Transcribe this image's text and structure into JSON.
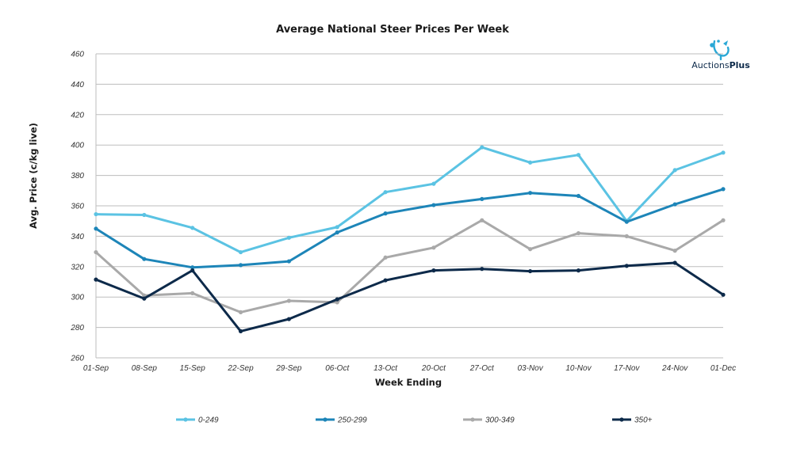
{
  "brand": {
    "name_part1": "Auctions",
    "name_part2": "Plus",
    "accent": "#2aa8d6",
    "dark": "#0d2a4a"
  },
  "chart_data": {
    "type": "line",
    "title": "Average National Steer Prices Per Week",
    "xlabel": "Week Ending",
    "ylabel": "Avg. Price (c/kg live)",
    "ylim": [
      260,
      460
    ],
    "yticks": [
      260,
      280,
      300,
      320,
      340,
      360,
      380,
      400,
      420,
      440,
      460
    ],
    "grid": true,
    "legend": "bottom",
    "categories": [
      "01-Sep",
      "08-Sep",
      "15-Sep",
      "22-Sep",
      "29-Sep",
      "06-Oct",
      "13-Oct",
      "20-Oct",
      "27-Oct",
      "03-Nov",
      "10-Nov",
      "17-Nov",
      "24-Nov",
      "01-Dec"
    ],
    "series": [
      {
        "name": "0-249",
        "color": "#5bc3e3",
        "values": [
          354.5,
          354,
          345.5,
          329.5,
          339,
          346,
          369,
          374.5,
          398.5,
          388.5,
          393.5,
          350,
          383.5,
          395
        ]
      },
      {
        "name": "250-299",
        "color": "#1d85b8",
        "values": [
          345,
          325,
          319.5,
          321,
          323.5,
          342.5,
          355,
          360.5,
          364.5,
          368.5,
          366.5,
          349.5,
          361,
          371
        ]
      },
      {
        "name": "300-349",
        "color": "#a9a9a9",
        "values": [
          329.5,
          301,
          302.5,
          290,
          297.5,
          296.5,
          326,
          332.5,
          350.5,
          331.5,
          342,
          340,
          330.5,
          350.5
        ]
      },
      {
        "name": "350+",
        "color": "#0d2a4a",
        "values": [
          311.5,
          299,
          317.5,
          277.5,
          285.5,
          298.5,
          311,
          317.5,
          318.5,
          317,
          317.5,
          320.5,
          322.5,
          301.5
        ]
      }
    ]
  }
}
